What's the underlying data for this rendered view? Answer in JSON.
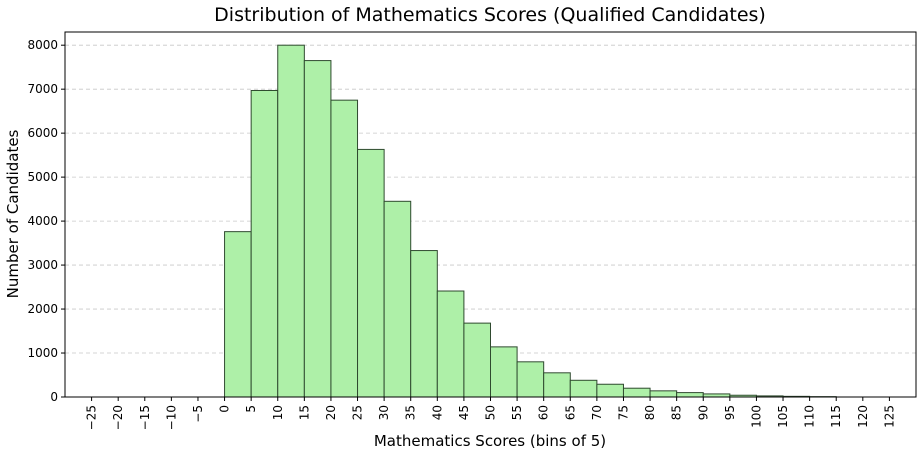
{
  "chart_data": {
    "type": "bar",
    "title": "Distribution of Mathematics Scores (Qualified Candidates)",
    "xlabel": "Mathematics Scores (bins of 5)",
    "ylabel": "Number of Candidates",
    "xlim": [
      -30,
      130
    ],
    "ylim": [
      0,
      8300
    ],
    "bin_width": 5,
    "x_ticks": [
      -25,
      -20,
      -15,
      -10,
      -5,
      0,
      5,
      10,
      15,
      20,
      25,
      30,
      35,
      40,
      45,
      50,
      55,
      60,
      65,
      70,
      75,
      80,
      85,
      90,
      95,
      100,
      105,
      110,
      115,
      120,
      125
    ],
    "x_tick_labels": [
      "−25",
      "−20",
      "−15",
      "−10",
      "−5",
      "0",
      "5",
      "10",
      "15",
      "20",
      "25",
      "30",
      "35",
      "40",
      "45",
      "50",
      "55",
      "60",
      "65",
      "70",
      "75",
      "80",
      "85",
      "90",
      "95",
      "100",
      "105",
      "110",
      "115",
      "120",
      "125"
    ],
    "y_ticks": [
      0,
      1000,
      2000,
      3000,
      4000,
      5000,
      6000,
      7000,
      8000
    ],
    "y_tick_labels": [
      "0",
      "1000",
      "2000",
      "3000",
      "4000",
      "5000",
      "6000",
      "7000",
      "8000"
    ],
    "bin_starts": [
      0,
      5,
      10,
      15,
      20,
      25,
      30,
      35,
      40,
      45,
      50,
      55,
      60,
      65,
      70,
      75,
      80,
      85,
      90,
      95,
      100,
      105,
      110
    ],
    "values": [
      3760,
      6970,
      8000,
      7650,
      6750,
      5630,
      4450,
      3330,
      2410,
      1680,
      1140,
      800,
      550,
      380,
      290,
      200,
      140,
      100,
      70,
      40,
      25,
      15,
      8
    ],
    "bar_color": "#aef0a8",
    "bar_edge_color": "#2f4a2f",
    "grid": "horizontal-dashed",
    "legend": "none"
  }
}
